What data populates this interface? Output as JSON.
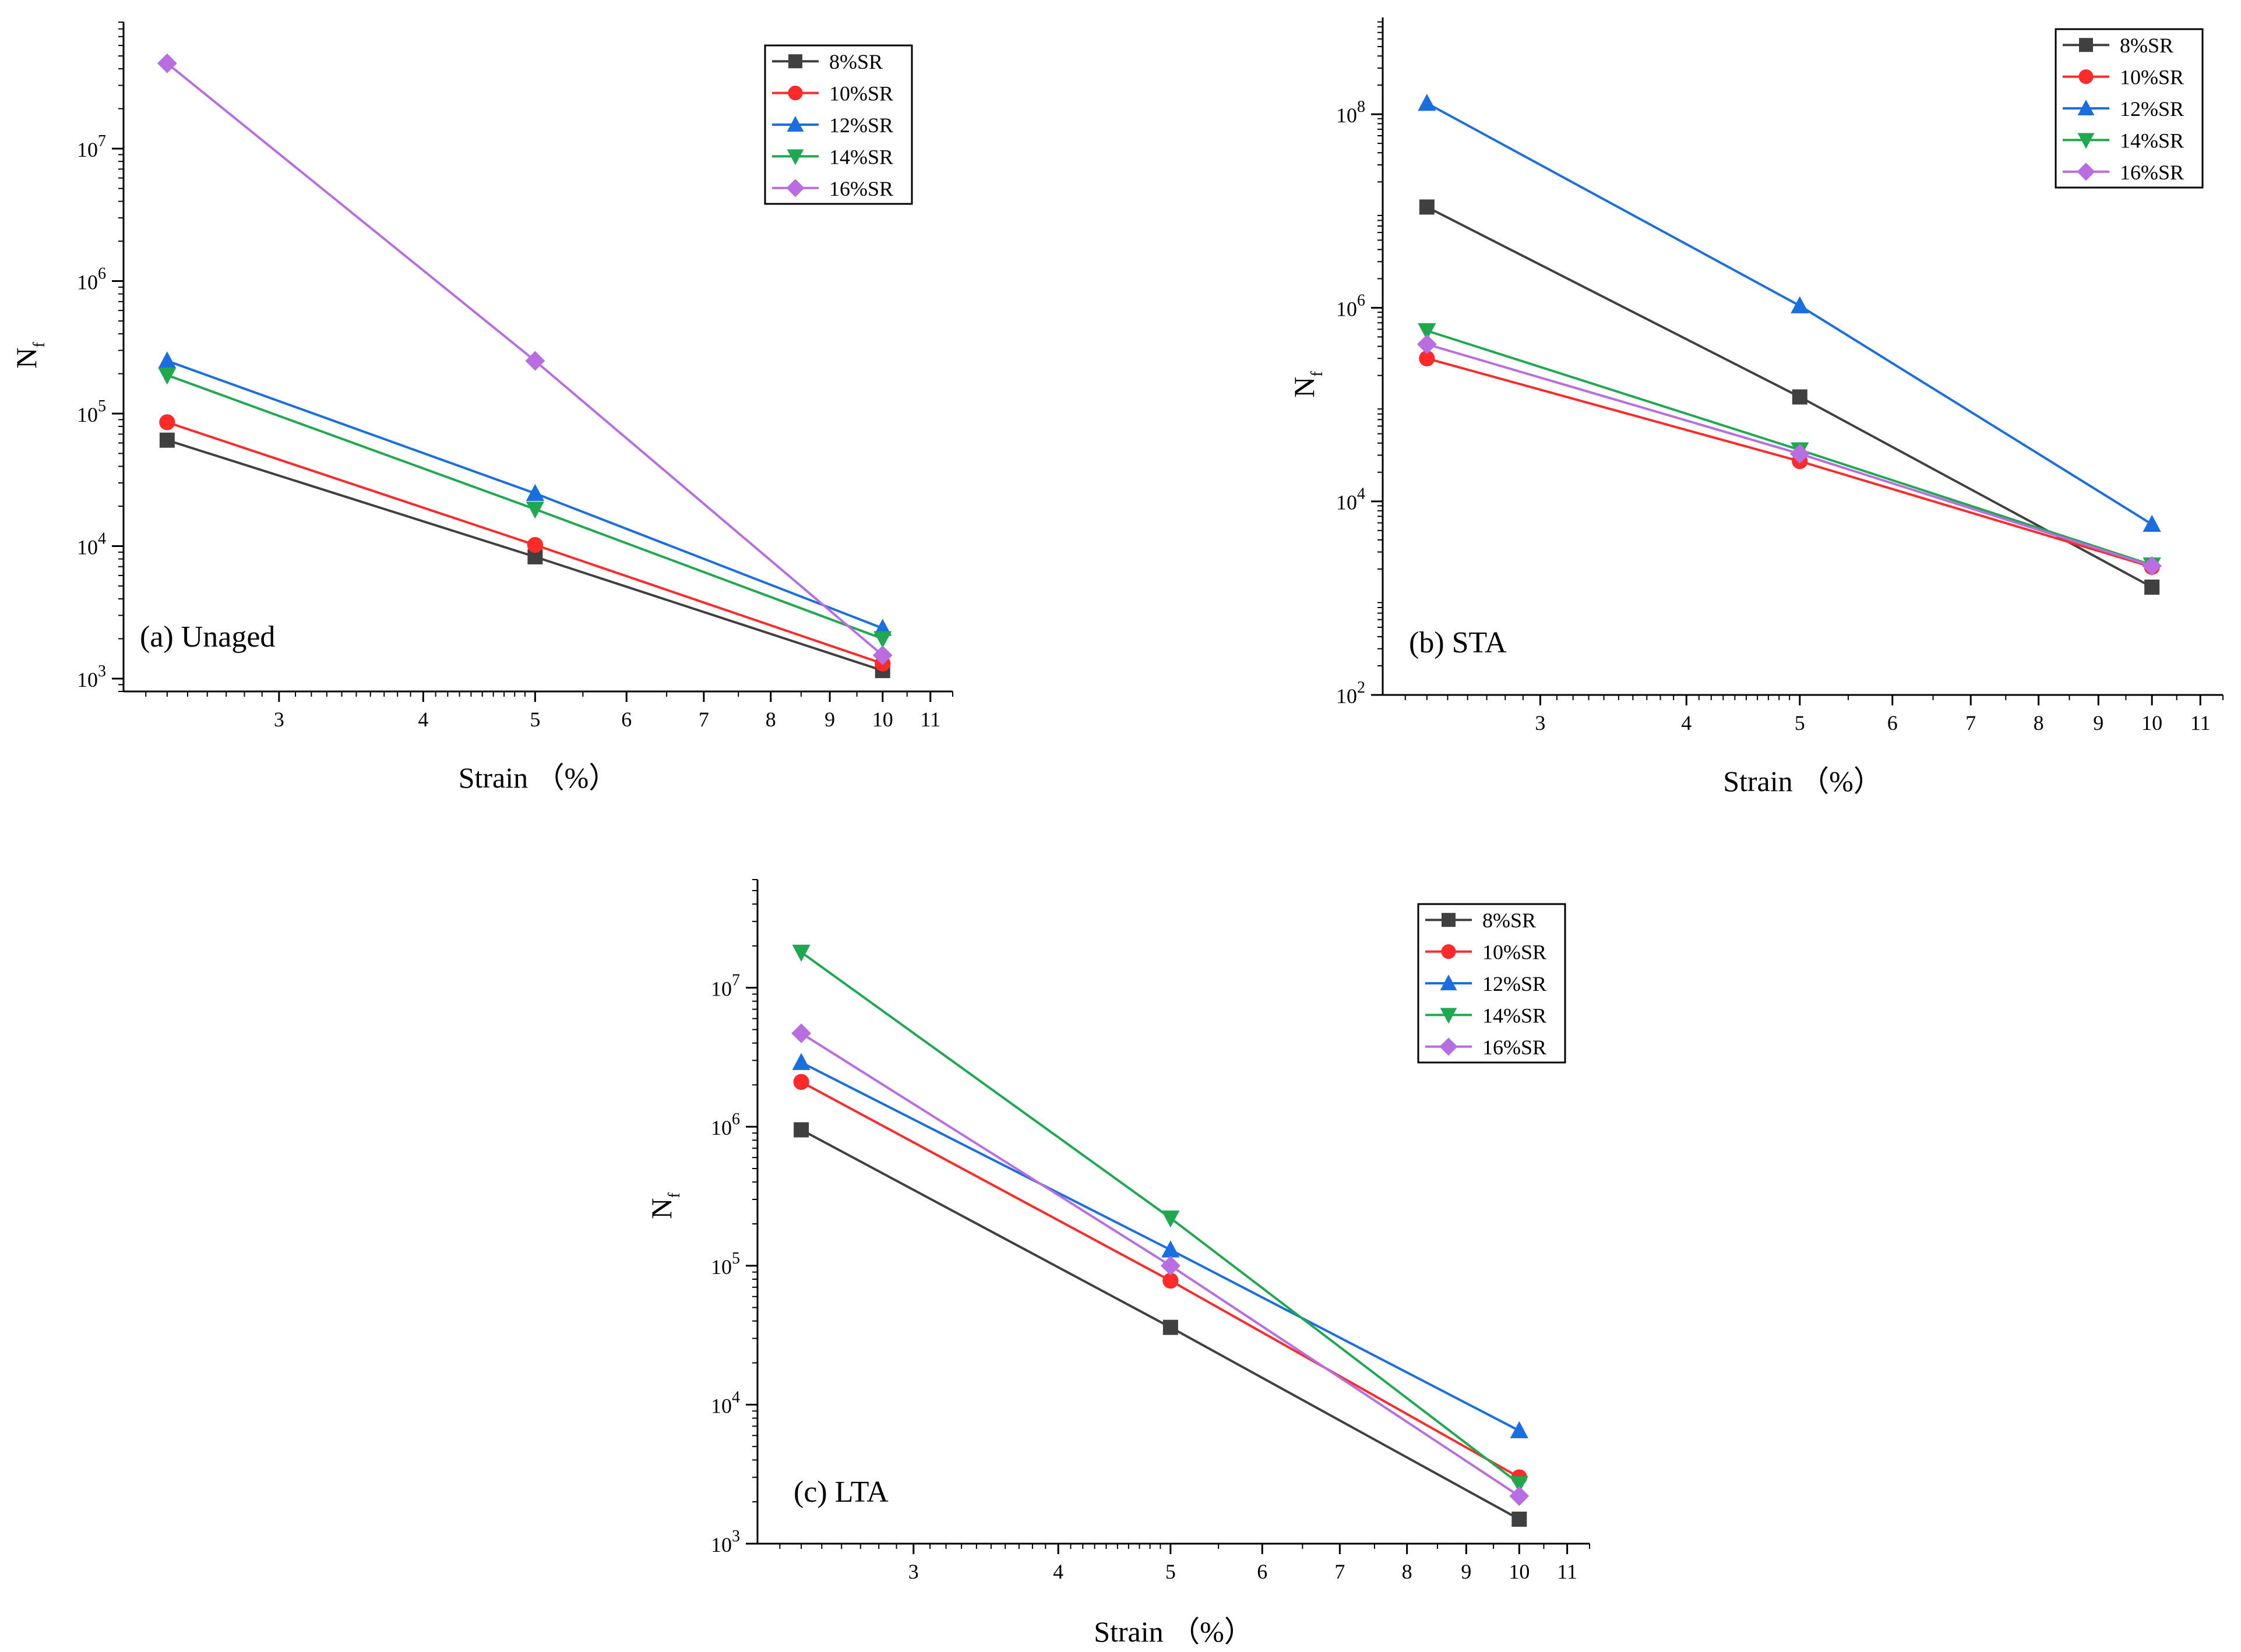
{
  "chart_data": [
    {
      "id": "a",
      "type": "line",
      "title": "(a) Unaged",
      "xlabel": "Strain （%）",
      "ylabel": "N",
      "ylabel_sub": "f",
      "xscale": "log",
      "yscale": "log",
      "xlim": [
        2.2,
        11.5
      ],
      "ylim": [
        800,
        90000000
      ],
      "xticks": [
        3,
        4,
        5,
        6,
        7,
        8,
        9,
        10,
        11
      ],
      "yticks": [
        {
          "base": "10",
          "exp": "3",
          "v": 1000
        },
        {
          "base": "10",
          "exp": "4",
          "v": 10000
        },
        {
          "base": "10",
          "exp": "5",
          "v": 100000
        },
        {
          "base": "10",
          "exp": "6",
          "v": 1000000
        },
        {
          "base": "10",
          "exp": "7",
          "v": 10000000
        }
      ],
      "legend_position": "top-right",
      "x": [
        2.4,
        5,
        10
      ],
      "series": [
        {
          "name": "8%SR",
          "values": [
            63000,
            8300,
            1150
          ]
        },
        {
          "name": "10%SR",
          "values": [
            86000,
            10200,
            1300
          ]
        },
        {
          "name": "12%SR",
          "values": [
            250000,
            25000,
            2400
          ]
        },
        {
          "name": "14%SR",
          "values": [
            195000,
            19000,
            2000
          ]
        },
        {
          "name": "16%SR",
          "values": [
            44000000,
            250000,
            1500
          ]
        }
      ]
    },
    {
      "id": "b",
      "type": "line",
      "title": "(b) STA",
      "xlabel": "Strain （%）",
      "ylabel": "N",
      "ylabel_sub": "f",
      "xscale": "log",
      "yscale": "log",
      "xlim": [
        2.2,
        11.5
      ],
      "ylim": [
        100,
        1000000000
      ],
      "xticks": [
        3,
        4,
        5,
        6,
        7,
        8,
        9,
        10,
        11
      ],
      "yticks": [
        {
          "base": "10",
          "exp": "2",
          "v": 100
        },
        {
          "base": "10",
          "exp": "4",
          "v": 10000
        },
        {
          "base": "10",
          "exp": "6",
          "v": 1000000
        },
        {
          "base": "10",
          "exp": "8",
          "v": 100000000
        }
      ],
      "legend_position": "top-right",
      "x": [
        2.4,
        5,
        10
      ],
      "series": [
        {
          "name": "8%SR",
          "values": [
            11000000,
            120000,
            1300
          ]
        },
        {
          "name": "10%SR",
          "values": [
            300000,
            26000,
            2100
          ]
        },
        {
          "name": "12%SR",
          "values": [
            130000000,
            1050000,
            5800
          ]
        },
        {
          "name": "14%SR",
          "values": [
            580000,
            34000,
            2200
          ]
        },
        {
          "name": "16%SR",
          "values": [
            420000,
            31000,
            2150
          ]
        }
      ]
    },
    {
      "id": "c",
      "type": "line",
      "title": "(c) LTA",
      "xlabel": "Strain （%）",
      "ylabel": "N",
      "ylabel_sub": "f",
      "xscale": "log",
      "yscale": "log",
      "xlim": [
        2.2,
        11.5
      ],
      "ylim": [
        1000,
        60000000
      ],
      "xticks": [
        3,
        4,
        5,
        6,
        7,
        8,
        9,
        10,
        11
      ],
      "yticks": [
        {
          "base": "10",
          "exp": "3",
          "v": 1000
        },
        {
          "base": "10",
          "exp": "4",
          "v": 10000
        },
        {
          "base": "10",
          "exp": "5",
          "v": 100000
        },
        {
          "base": "10",
          "exp": "6",
          "v": 1000000
        },
        {
          "base": "10",
          "exp": "7",
          "v": 10000000
        }
      ],
      "legend_position": "top-right",
      "x": [
        2.4,
        5,
        10
      ],
      "series": [
        {
          "name": "8%SR",
          "values": [
            950000,
            36000,
            1500
          ]
        },
        {
          "name": "10%SR",
          "values": [
            2100000,
            78000,
            3000
          ]
        },
        {
          "name": "12%SR",
          "values": [
            2900000,
            130000,
            6500
          ]
        },
        {
          "name": "14%SR",
          "values": [
            18000000,
            220000,
            2700
          ]
        },
        {
          "name": "16%SR",
          "values": [
            4700000,
            100000,
            2200
          ]
        }
      ]
    }
  ],
  "series_styles": [
    {
      "color": "#404040",
      "marker": "square"
    },
    {
      "color": "#ff2a2a",
      "marker": "circle"
    },
    {
      "color": "#1a6ee0",
      "marker": "triangle-up"
    },
    {
      "color": "#1fa84f",
      "marker": "triangle-down"
    },
    {
      "color": "#b86ee0",
      "marker": "diamond"
    }
  ]
}
